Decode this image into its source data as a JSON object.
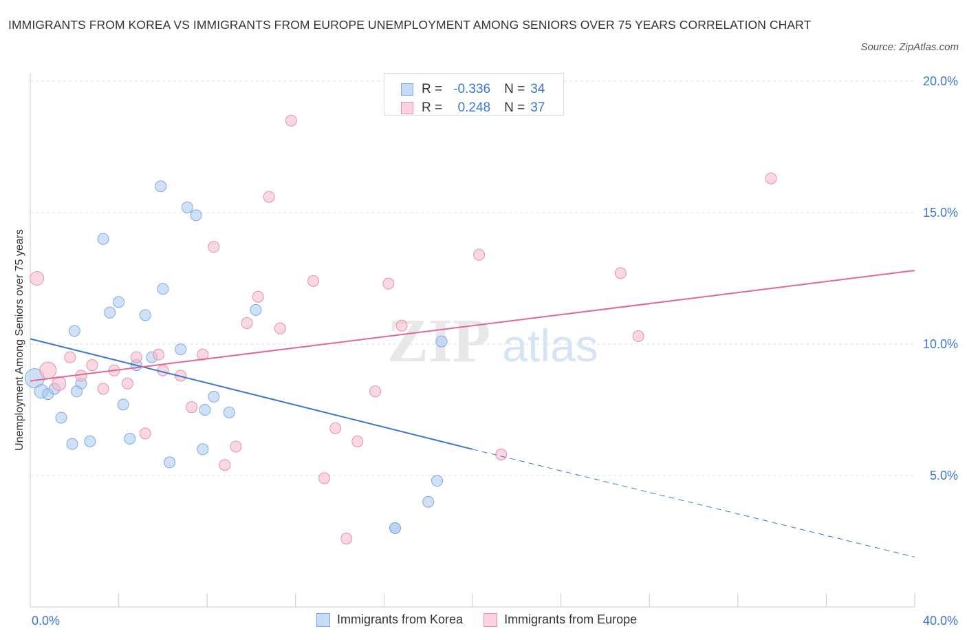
{
  "title": "IMMIGRANTS FROM KOREA VS IMMIGRANTS FROM EUROPE UNEMPLOYMENT AMONG SENIORS OVER 75 YEARS CORRELATION CHART",
  "source": "Source: ZipAtlas.com",
  "watermark": {
    "zip": "ZIP",
    "atlas": "atlas"
  },
  "legend": {
    "rows": [
      {
        "r_label": "R =",
        "r_value": "-0.336",
        "n_label": "N =",
        "n_value": "34",
        "color": "#a8c8f0"
      },
      {
        "r_label": "R =",
        "r_value": "0.248",
        "n_label": "N =",
        "n_value": "37",
        "color": "#f5b8c8"
      }
    ]
  },
  "chart_data": {
    "type": "scatter",
    "ylabel": "Unemployment Among Seniors over 75 years",
    "xlim": [
      0,
      40
    ],
    "ylim": [
      0,
      20
    ],
    "x_tick_labels": [
      "0.0%",
      "40.0%"
    ],
    "y_tick_labels": [
      "5.0%",
      "10.0%",
      "15.0%",
      "20.0%"
    ],
    "y_ticks": [
      5,
      10,
      15,
      20
    ],
    "grid": true,
    "legend_position": "top-center",
    "series": [
      {
        "name": "Immigrants from Korea",
        "color": "#a8c8f0",
        "stroke": "#7fa8e0",
        "line_color": "#3b76d0",
        "trend": {
          "x0": 0,
          "y0": 10.2,
          "x1": 20,
          "y1": 6.0,
          "dash_x1": 40,
          "dash_y1": 1.9
        },
        "points": [
          [
            0.2,
            8.7,
            14
          ],
          [
            0.5,
            8.2,
            10
          ],
          [
            0.8,
            8.1,
            8
          ],
          [
            1.1,
            8.3,
            8
          ],
          [
            1.4,
            7.2,
            8
          ],
          [
            2.0,
            10.5,
            8
          ],
          [
            1.9,
            6.2,
            8
          ],
          [
            2.3,
            8.5,
            8
          ],
          [
            2.7,
            6.3,
            8
          ],
          [
            3.3,
            14.0,
            8
          ],
          [
            3.6,
            11.2,
            8
          ],
          [
            4.0,
            11.6,
            8
          ],
          [
            4.2,
            7.7,
            8
          ],
          [
            4.5,
            6.4,
            8
          ],
          [
            4.8,
            9.2,
            8
          ],
          [
            5.2,
            11.1,
            8
          ],
          [
            5.5,
            9.5,
            8
          ],
          [
            5.9,
            16.0,
            8
          ],
          [
            6.0,
            12.1,
            8
          ],
          [
            6.3,
            5.5,
            8
          ],
          [
            6.8,
            9.8,
            8
          ],
          [
            7.1,
            15.2,
            8
          ],
          [
            7.5,
            14.9,
            8
          ],
          [
            7.8,
            6.0,
            8
          ],
          [
            7.9,
            7.5,
            8
          ],
          [
            8.3,
            8.0,
            8
          ],
          [
            9.0,
            7.4,
            8
          ],
          [
            10.2,
            11.3,
            8
          ],
          [
            16.5,
            3.0,
            8
          ],
          [
            16.5,
            3.0,
            8
          ],
          [
            18.0,
            4.0,
            8
          ],
          [
            18.4,
            4.8,
            8
          ],
          [
            18.6,
            10.1,
            8
          ],
          [
            2.1,
            8.2,
            8
          ]
        ]
      },
      {
        "name": "Immigrants from Europe",
        "color": "#f5b8c8",
        "stroke": "#e890a8",
        "line_color": "#e06890",
        "trend": {
          "x0": 0,
          "y0": 8.6,
          "x1": 40,
          "y1": 12.8
        },
        "points": [
          [
            0.3,
            12.5,
            10
          ],
          [
            0.8,
            9.0,
            12
          ],
          [
            1.3,
            8.5,
            10
          ],
          [
            1.8,
            9.5,
            8
          ],
          [
            2.3,
            8.8,
            8
          ],
          [
            2.8,
            9.2,
            8
          ],
          [
            3.3,
            8.3,
            8
          ],
          [
            3.8,
            9.0,
            8
          ],
          [
            4.4,
            8.5,
            8
          ],
          [
            4.8,
            9.5,
            8
          ],
          [
            5.2,
            6.6,
            8
          ],
          [
            5.8,
            9.6,
            8
          ],
          [
            6.0,
            9.0,
            8
          ],
          [
            6.8,
            8.8,
            8
          ],
          [
            7.3,
            7.6,
            8
          ],
          [
            7.8,
            9.6,
            8
          ],
          [
            8.3,
            13.7,
            8
          ],
          [
            8.8,
            5.4,
            8
          ],
          [
            9.3,
            6.1,
            8
          ],
          [
            9.8,
            10.8,
            8
          ],
          [
            10.3,
            11.8,
            8
          ],
          [
            10.8,
            15.6,
            8
          ],
          [
            11.3,
            10.6,
            8
          ],
          [
            11.8,
            18.5,
            8
          ],
          [
            12.8,
            12.4,
            8
          ],
          [
            13.3,
            4.9,
            8
          ],
          [
            13.8,
            6.8,
            8
          ],
          [
            14.3,
            2.6,
            8
          ],
          [
            14.8,
            6.3,
            8
          ],
          [
            15.6,
            8.2,
            8
          ],
          [
            16.2,
            12.3,
            8
          ],
          [
            16.8,
            10.7,
            8
          ],
          [
            20.3,
            13.4,
            8
          ],
          [
            21.3,
            5.8,
            8
          ],
          [
            26.7,
            12.7,
            8
          ],
          [
            27.5,
            10.3,
            8
          ],
          [
            33.5,
            16.3,
            8
          ]
        ]
      }
    ]
  }
}
